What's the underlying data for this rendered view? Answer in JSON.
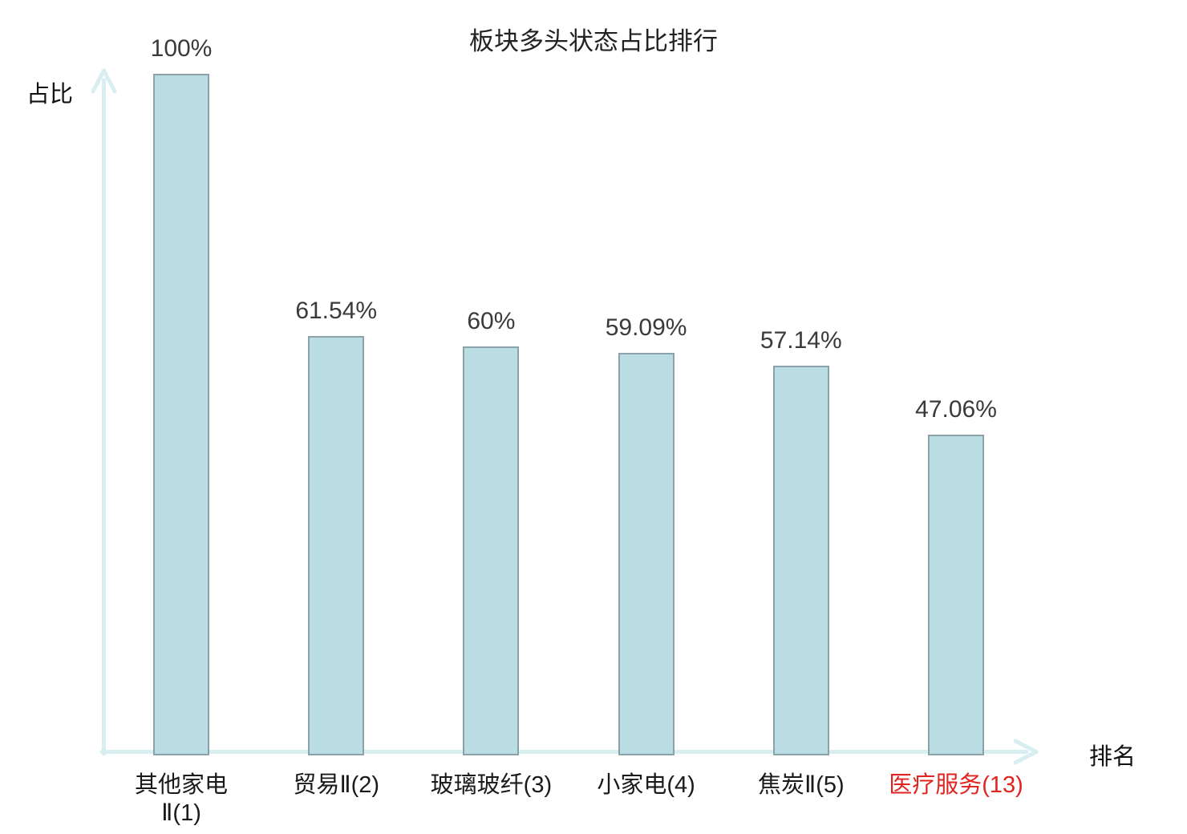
{
  "title": "板块多头状态占比排行",
  "axes": {
    "y_label": "占比",
    "x_label": "排名"
  },
  "colors": {
    "bar_fill": "#b9dde2",
    "bar_border": "#8ba3a8",
    "axis": "#d8eef0",
    "label_text": "#3a3a3a",
    "category_text": "#1a1a1a",
    "highlight_text": "#e02420"
  },
  "chart_data": {
    "type": "bar",
    "title": "板块多头状态占比排行",
    "xlabel": "排名",
    "ylabel": "占比",
    "ylim": [
      0,
      100
    ],
    "grid": false,
    "legend_position": "none",
    "categories": [
      "其他家电Ⅱ(1)",
      "贸易Ⅱ(2)",
      "玻璃玻纤(3)",
      "小家电(4)",
      "焦炭Ⅱ(5)",
      "医疗服务(13)"
    ],
    "category_display": [
      "其他家电\nⅡ(1)",
      "贸易Ⅱ(2)",
      "玻璃玻纤(3)",
      "小家电(4)",
      "焦炭Ⅱ(5)",
      "医疗服务(13)"
    ],
    "values": [
      100,
      61.54,
      60,
      59.09,
      57.14,
      47.06
    ],
    "value_labels": [
      "100%",
      "61.54%",
      "60%",
      "59.09%",
      "57.14%",
      "47.06%"
    ],
    "highlight_index": 5,
    "highlight_color": "#e02420",
    "bar_fill": "#b9dde2",
    "bar_border": "#8ba3a8",
    "axis_color": "#d8eef0"
  }
}
